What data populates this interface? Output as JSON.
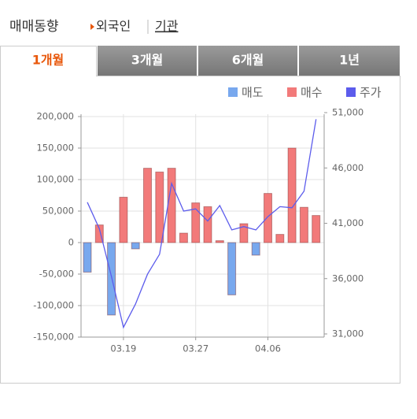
{
  "header": {
    "title": "매매동향",
    "links": [
      "외국인",
      "기관"
    ]
  },
  "tabs": [
    "1개월",
    "3개월",
    "6개월",
    "1년"
  ],
  "chart_data": {
    "type": "bar",
    "categories": [
      null,
      null,
      null,
      "03.19",
      null,
      null,
      null,
      null,
      null,
      "03.27",
      null,
      null,
      null,
      null,
      null,
      "04.06",
      null,
      null,
      null,
      null
    ],
    "series": [
      {
        "name": "매도",
        "color": "#78a8ee",
        "values": [
          -47000,
          null,
          -115000,
          null,
          -10000,
          null,
          null,
          null,
          null,
          null,
          null,
          null,
          -83000,
          null,
          -20000,
          null,
          null,
          null,
          null,
          null
        ]
      },
      {
        "name": "매수",
        "color": "#f27a7a",
        "values": [
          null,
          28000,
          null,
          72000,
          null,
          118000,
          112000,
          118000,
          15000,
          63000,
          57000,
          3000,
          null,
          30000,
          null,
          78000,
          13000,
          150000,
          56000,
          43000
        ]
      },
      {
        "name": "주가",
        "color": "#5c5cec",
        "type": "line",
        "axis": "y2",
        "values": [
          42900,
          40500,
          36200,
          31600,
          33700,
          36400,
          38200,
          44600,
          42100,
          42300,
          41200,
          42600,
          40400,
          40700,
          40400,
          41600,
          42500,
          42400,
          43900,
          50400
        ]
      }
    ],
    "ylim": [
      -150000,
      200000
    ],
    "yticks": [
      {
        "value": -150000,
        "label": "-150,000"
      },
      {
        "value": -100000,
        "label": "-100,000"
      },
      {
        "value": -50000,
        "label": "-50,000"
      },
      0,
      {
        "value": 50000,
        "label": "50,000"
      },
      {
        "value": 100000,
        "label": "100,000"
      },
      {
        "value": 150000,
        "label": "150,000"
      },
      {
        "value": 200000,
        "label": "200,000"
      }
    ],
    "y2lim": [
      31000,
      51000
    ],
    "y2ticks": [
      {
        "value": 31000,
        "label": "31,000"
      },
      {
        "value": 36000,
        "label": "36,000"
      },
      {
        "value": 41000,
        "label": "41,000"
      },
      {
        "value": 46000,
        "label": "46,000"
      },
      {
        "value": 51000,
        "label": "51,000"
      }
    ],
    "grid": true,
    "legend": "top-right"
  }
}
